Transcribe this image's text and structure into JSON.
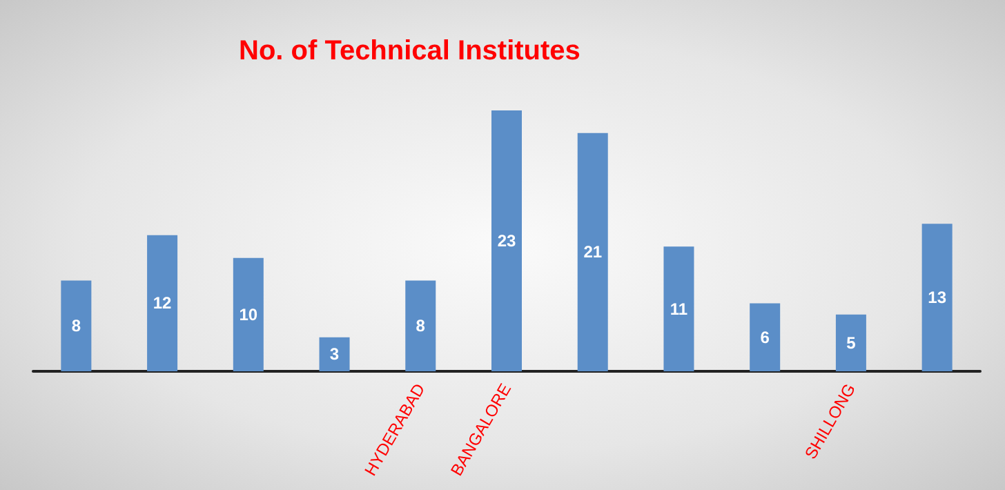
{
  "chart_data": {
    "type": "bar",
    "title": "No. of Technical Institutes",
    "categories": [
      null,
      null,
      null,
      null,
      "HYDERABAD",
      "BANGALORE",
      null,
      null,
      null,
      "SHILLONG",
      null
    ],
    "values": [
      8,
      12,
      10,
      3,
      8,
      23,
      21,
      11,
      6,
      5,
      13
    ],
    "color": "#5b8ec8",
    "data_labels": true
  }
}
